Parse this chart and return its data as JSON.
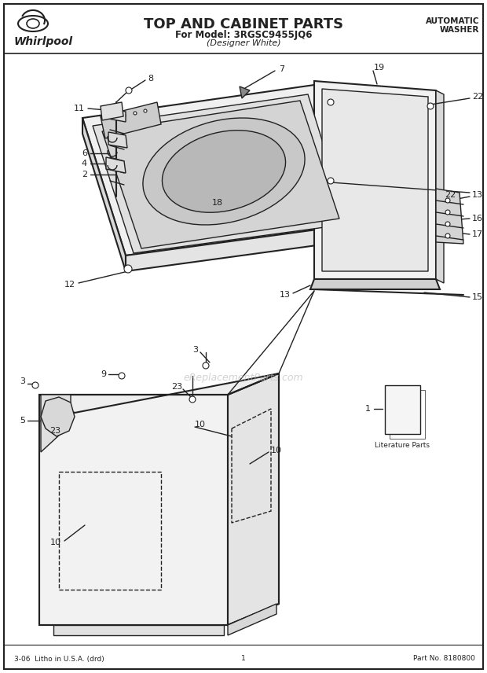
{
  "title": "TOP AND CABINET PARTS",
  "subtitle1": "For Model: 3RGSC9455JQ6",
  "subtitle2": "(Designer White)",
  "top_right_line1": "AUTOMATIC",
  "top_right_line2": "WASHER",
  "bottom_left": "3-06  Litho in U.S.A. (drd)",
  "bottom_center": "1",
  "bottom_right": "Part No. 8180800",
  "watermark": "eReplacementParts.com",
  "bg_color": "#ffffff",
  "line_color": "#222222"
}
